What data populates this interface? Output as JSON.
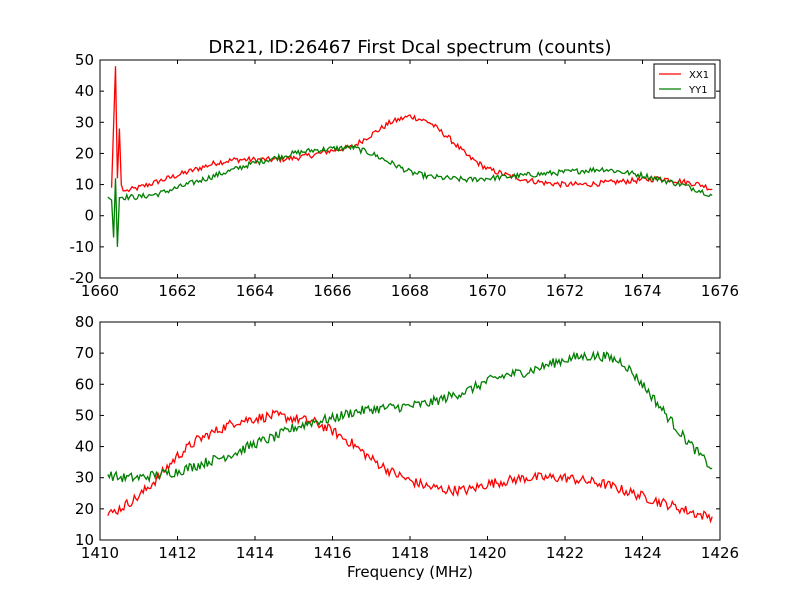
{
  "title": "DR21, ID:26467 First Dcal spectrum (counts)",
  "colors": {
    "xx1": "#ff0000",
    "yy1": "#007f00"
  },
  "chart_data": [
    {
      "type": "line",
      "title": "DR21, ID:26467 First Dcal spectrum (counts)",
      "xlabel": "",
      "ylabel": "",
      "xlim": [
        1660,
        1676
      ],
      "ylim": [
        -20,
        50
      ],
      "xticks": [
        1660,
        1662,
        1664,
        1666,
        1668,
        1670,
        1672,
        1674,
        1676
      ],
      "yticks": [
        -20,
        -10,
        0,
        10,
        20,
        30,
        40,
        50
      ],
      "grid": false,
      "legend": "top-right",
      "series": [
        {
          "name": "XX1",
          "color": "#ff0000",
          "x": [
            1660.3,
            1660.4,
            1660.45,
            1660.5,
            1660.55,
            1660.6,
            1660.7,
            1661.0,
            1661.5,
            1662.0,
            1662.5,
            1663.0,
            1663.5,
            1664.0,
            1664.5,
            1665.0,
            1665.5,
            1666.0,
            1666.5,
            1667.0,
            1667.5,
            1668.0,
            1668.5,
            1669.0,
            1669.5,
            1670.0,
            1670.5,
            1671.0,
            1671.5,
            1672.0,
            1672.5,
            1673.0,
            1673.5,
            1674.0,
            1674.5,
            1675.0,
            1675.5,
            1675.8
          ],
          "y": [
            9,
            48,
            12,
            28,
            10,
            8,
            8,
            9,
            11,
            13,
            15,
            17,
            18,
            18,
            18,
            18.5,
            19.5,
            21,
            22,
            26,
            30,
            32,
            30,
            25,
            19,
            15,
            13,
            11.5,
            10.5,
            10,
            10,
            10.5,
            11,
            11.5,
            12,
            11,
            10,
            8.5
          ]
        },
        {
          "name": "YY1",
          "color": "#007f00",
          "x": [
            1660.2,
            1660.3,
            1660.35,
            1660.4,
            1660.45,
            1660.5,
            1661.0,
            1661.5,
            1662.0,
            1662.5,
            1663.0,
            1663.5,
            1664.0,
            1664.5,
            1665.0,
            1665.5,
            1666.0,
            1666.5,
            1667.0,
            1667.5,
            1668.0,
            1668.5,
            1669.0,
            1669.5,
            1670.0,
            1670.5,
            1671.0,
            1671.5,
            1672.0,
            1672.5,
            1673.0,
            1673.5,
            1674.0,
            1674.5,
            1675.0,
            1675.5,
            1675.8
          ],
          "y": [
            6,
            5,
            -7,
            12,
            -10,
            6,
            6,
            7,
            9,
            11,
            13,
            15,
            17,
            18.5,
            20,
            21,
            21.5,
            22,
            20,
            17,
            14,
            12.5,
            12,
            11.5,
            12,
            12.5,
            13,
            13.5,
            14,
            14.5,
            15,
            14,
            13,
            11.5,
            10,
            8,
            6.5
          ]
        }
      ]
    },
    {
      "type": "line",
      "title": "",
      "xlabel": "Frequency (MHz)",
      "ylabel": "",
      "xlim": [
        1410,
        1426
      ],
      "ylim": [
        10,
        80
      ],
      "xticks": [
        1410,
        1412,
        1414,
        1416,
        1418,
        1420,
        1422,
        1424,
        1426
      ],
      "yticks": [
        10,
        20,
        30,
        40,
        50,
        60,
        70,
        80
      ],
      "grid": false,
      "legend": "none",
      "series": [
        {
          "color": "#ff0000",
          "x": [
            1410.2,
            1410.5,
            1411.0,
            1411.5,
            1412.0,
            1412.5,
            1413.0,
            1413.5,
            1414.0,
            1414.5,
            1415.0,
            1415.5,
            1416.0,
            1416.5,
            1417.0,
            1417.5,
            1418.0,
            1418.5,
            1419.0,
            1419.5,
            1420.0,
            1420.5,
            1421.0,
            1421.5,
            1422.0,
            1422.5,
            1423.0,
            1423.5,
            1424.0,
            1424.5,
            1425.0,
            1425.5,
            1425.8
          ],
          "y": [
            18,
            20,
            24,
            30,
            37,
            42,
            45,
            48,
            49,
            50,
            49,
            48,
            45,
            41,
            36,
            32,
            29,
            27,
            26,
            26,
            28,
            29,
            30,
            30,
            30,
            29,
            28,
            26,
            24,
            22,
            20,
            18,
            17.5
          ]
        },
        {
          "color": "#007f00",
          "x": [
            1410.2,
            1410.5,
            1411.0,
            1411.5,
            1412.0,
            1412.5,
            1413.0,
            1413.5,
            1414.0,
            1414.5,
            1415.0,
            1415.5,
            1416.0,
            1416.5,
            1417.0,
            1417.5,
            1418.0,
            1418.5,
            1419.0,
            1419.5,
            1420.0,
            1420.5,
            1421.0,
            1421.5,
            1422.0,
            1422.5,
            1423.0,
            1423.5,
            1424.0,
            1424.5,
            1425.0,
            1425.5,
            1425.8
          ],
          "y": [
            31,
            30,
            30,
            31,
            32,
            34,
            36,
            38,
            41,
            43,
            46,
            48,
            49,
            51,
            52,
            52.5,
            53,
            54,
            56,
            58,
            61,
            63,
            64,
            66,
            68,
            69,
            69,
            67,
            60,
            52,
            44,
            37,
            33
          ]
        }
      ]
    }
  ]
}
